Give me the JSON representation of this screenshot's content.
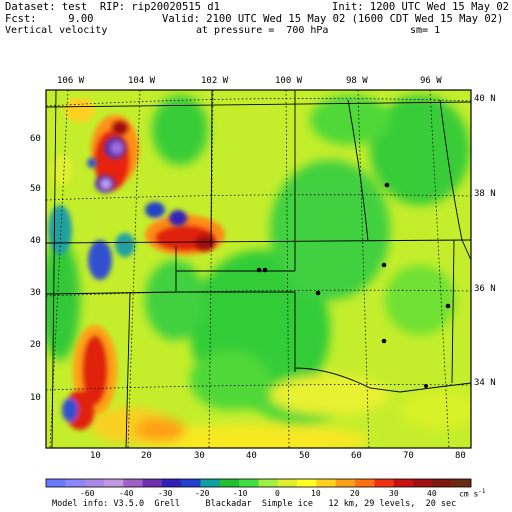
{
  "header": {
    "dataset": "Dataset: test  RIP: rip20020515 d1",
    "init": "Init: 1200 UTC Wed 15 May 02",
    "fcst": "Fcst:     9.00",
    "valid": "Valid: 2100 UTC Wed 15 May 02 (1600 CDT Wed 15 May 02)",
    "field": "Vertical velocity",
    "pressure": "at pressure =  700 hPa",
    "sm": "sm= 1"
  },
  "map": {
    "lon_labels": [
      "106 W",
      "104 W",
      "102 W",
      "100 W",
      "98 W",
      "96 W"
    ],
    "lat_labels": [
      "40 N",
      "38 N",
      "36 N",
      "34 N"
    ],
    "grid_y_labels": [
      "60",
      "50",
      "40",
      "30",
      "20",
      "10"
    ],
    "grid_x_labels": [
      "10",
      "20",
      "30",
      "40",
      "50",
      "60",
      "70",
      "80"
    ],
    "colors": {
      "pos_dark": "#8b1010",
      "pos_red": "#e01010",
      "pos_orange": "#ff8a10",
      "pos_yellow": "#ffee20",
      "zero_yellowgreen": "#b8f020",
      "neg_green": "#28c838",
      "neg_purple": "#8040b0",
      "neg_blue": "#2020c0"
    }
  },
  "colorbar": {
    "labels": [
      "-60",
      "-40",
      "-30",
      "-20",
      "-10",
      "0",
      "10",
      "20",
      "30",
      "40"
    ],
    "units": "cm s",
    "units_sup": "-1",
    "colors": [
      "#6a78ff",
      "#8a88ff",
      "#aa88e8",
      "#c098e0",
      "#a060c8",
      "#7030b0",
      "#3020b8",
      "#2040d0",
      "#10a0a0",
      "#20c030",
      "#40e040",
      "#a0f040",
      "#e0f030",
      "#ffff20",
      "#ffd020",
      "#ffa018",
      "#ff7010",
      "#f03010",
      "#c81010",
      "#a01010",
      "#801810",
      "#6a2a10"
    ]
  },
  "footer": "Model info: V3.5.0  Grell     Blackadar  Simple ice   12 km, 29 levels,  20 sec"
}
